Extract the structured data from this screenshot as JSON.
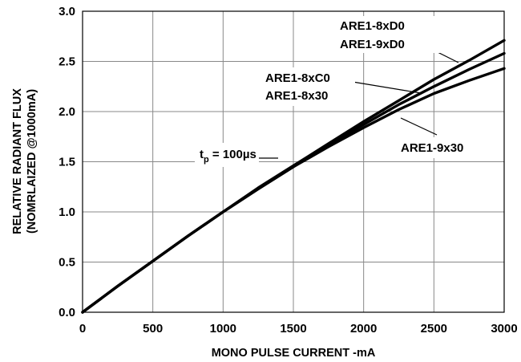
{
  "chart_data": {
    "type": "line",
    "xlabel": "MONO PULSE CURRENT -mA",
    "ylabel_line1": "RELATIVE RADIANT FLUX",
    "ylabel_line2": "(NOMRLAIZED @1000mA)",
    "xlim": [
      0,
      3000
    ],
    "ylim": [
      0,
      3.0
    ],
    "x_ticks": [
      "0",
      "500",
      "1000",
      "1500",
      "2000",
      "2500",
      "3000"
    ],
    "y_ticks": [
      "0.0",
      "0.5",
      "1.0",
      "1.5",
      "2.0",
      "2.5",
      "3.0"
    ],
    "grid": true,
    "x": [
      0,
      250,
      500,
      750,
      1000,
      1250,
      1500,
      1750,
      2000,
      2250,
      2500,
      2750,
      3000
    ],
    "series": [
      {
        "name": "ARE1-8xD0 / ARE1-9xD0 (upper)",
        "values": [
          0,
          0.26,
          0.51,
          0.76,
          1.0,
          1.24,
          1.46,
          1.68,
          1.9,
          2.11,
          2.32,
          2.51,
          2.71
        ]
      },
      {
        "name": "ARE1-8xC0 / ARE1-8x30 (middle)",
        "values": [
          0,
          0.26,
          0.51,
          0.76,
          1.0,
          1.23,
          1.45,
          1.67,
          1.87,
          2.07,
          2.25,
          2.42,
          2.58
        ]
      },
      {
        "name": "ARE1-9x30 (lower)",
        "values": [
          0,
          0.26,
          0.51,
          0.76,
          1.0,
          1.23,
          1.45,
          1.65,
          1.84,
          2.02,
          2.18,
          2.31,
          2.43
        ]
      }
    ],
    "annotations": {
      "label_8xD0": "ARE1-8xD0",
      "label_9xD0": "ARE1-9xD0",
      "label_8xC0": "ARE1-8xC0",
      "label_8x30": "ARE1-8x30",
      "label_9x30": "ARE1-9x30",
      "tp_main": "t",
      "tp_sub": "p",
      "tp_value": " = 100µs"
    }
  }
}
